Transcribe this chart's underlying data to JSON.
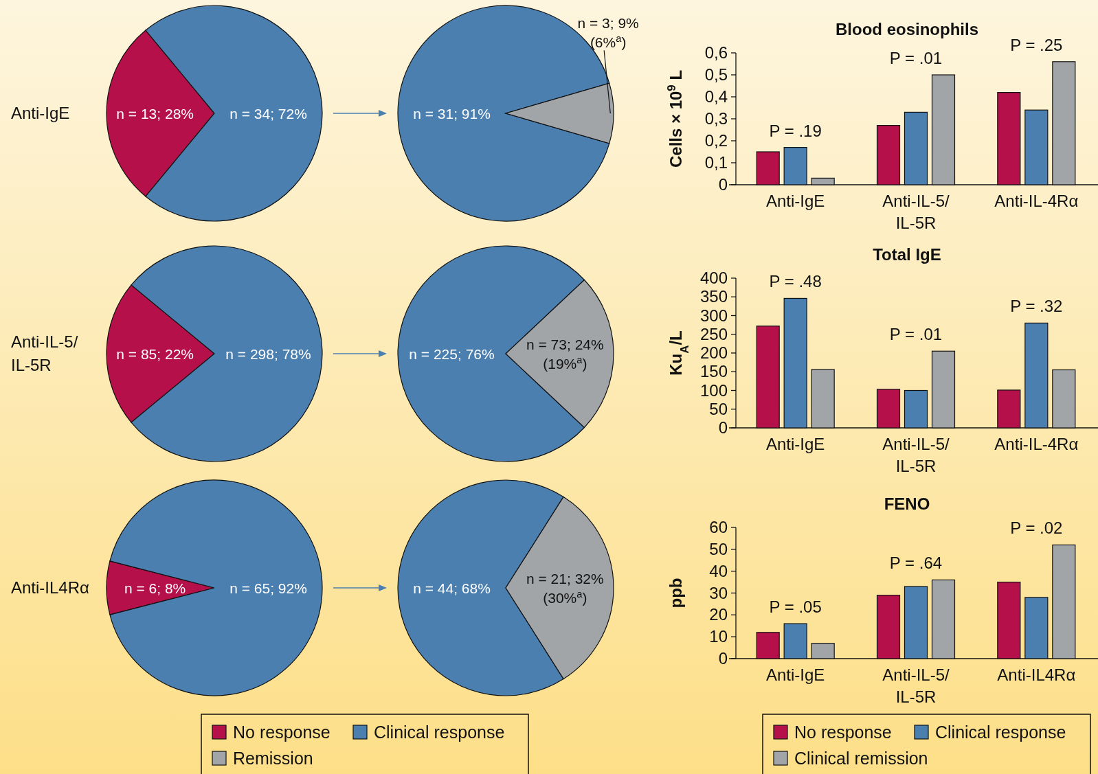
{
  "chart_data": [
    {
      "type": "pie",
      "title": "Anti-IgE",
      "categories": [
        "No response",
        "Clinical response",
        "Remission"
      ],
      "values": [
        28,
        72,
        0
      ],
      "colors": [
        "#b5104a",
        "#4a7fb0",
        "#a2a5a8"
      ],
      "value_labels": [
        "n = 13; 28%",
        "n = 34; 72%",
        null
      ],
      "legend": "bottom"
    },
    {
      "type": "pie",
      "categories": [
        null,
        null,
        null
      ],
      "values": [
        0,
        91,
        9
      ],
      "colors": [
        "#b5104a",
        "#4a7fb0",
        "#a2a5a8"
      ],
      "value_labels": [
        null,
        "n = 31; 91%",
        "n = 3; 9% (6%$^{a}$)"
      ]
    },
    {
      "type": "bar",
      "title": "Blood eosinophils",
      "ylabel": "Cells × 10$^{9}$ L",
      "categories": [
        "Anti-IgE",
        "Anti-IL-5/IL-5R",
        "Anti-IL-4Rα"
      ],
      "series": [
        {
          "color": "#b5104a",
          "values": [
            0.15,
            0.27,
            0.42
          ]
        },
        {
          "color": "#4a7fb0",
          "values": [
            0.17,
            0.33,
            0.34
          ]
        },
        {
          "color": "#a2a5a8",
          "values": [
            0.03,
            0.5,
            0.56
          ]
        }
      ],
      "ylim": [
        0,
        0.6
      ],
      "yticks": [
        0,
        {
          "value": 0.1,
          "label": "0,1"
        },
        {
          "value": 0.2,
          "label": "0,2"
        },
        {
          "value": 0.3,
          "label": "0,3"
        },
        {
          "value": 0.4,
          "label": "0,4"
        },
        {
          "value": 0.5,
          "label": "0,5"
        },
        {
          "value": 0.6,
          "label": "0,6"
        }
      ],
      "annotations": [
        "P = .19",
        "P = .01",
        "P = .25"
      ]
    },
    {
      "type": "pie",
      "title": "Anti-IL-5/IL-5R",
      "categories": [
        null,
        null,
        null
      ],
      "values": [
        22,
        78,
        0
      ],
      "colors": [
        "#b5104a",
        "#4a7fb0",
        "#a2a5a8"
      ],
      "value_labels": [
        "n = 85; 22%",
        "n = 298; 78%",
        null
      ]
    },
    {
      "type": "pie",
      "categories": [
        null,
        null,
        null
      ],
      "values": [
        0,
        76,
        24
      ],
      "colors": [
        "#b5104a",
        "#4a7fb0",
        "#a2a5a8"
      ],
      "value_labels": [
        null,
        "n = 225; 76%",
        "n = 73; 24% (19%$^{a}$)"
      ]
    },
    {
      "type": "bar",
      "title": "Total IgE",
      "ylabel": "Ku$_{A}$/L",
      "categories": [
        "Anti-IgE",
        "Anti-IL-5/IL-5R",
        "Anti-IL-4Rα"
      ],
      "series": [
        {
          "color": "#b5104a",
          "values": [
            272,
            103,
            101
          ]
        },
        {
          "color": "#4a7fb0",
          "values": [
            346,
            100,
            280
          ]
        },
        {
          "color": "#a2a5a8",
          "values": [
            156,
            205,
            155
          ]
        }
      ],
      "ylim": [
        0,
        400
      ],
      "yticks": [
        0,
        50,
        100,
        150,
        200,
        250,
        300,
        350,
        400
      ],
      "annotations": [
        "P = .48",
        "P = .01",
        "P = .32"
      ]
    },
    {
      "type": "pie",
      "title": "Anti-IL4Rα",
      "categories": [
        null,
        null,
        null
      ],
      "values": [
        8,
        92,
        0
      ],
      "colors": [
        "#b5104a",
        "#4a7fb0",
        "#a2a5a8"
      ],
      "value_labels": [
        "n = 6; 8%",
        "n = 65; 92%",
        null
      ]
    },
    {
      "type": "pie",
      "categories": [
        null,
        null,
        null
      ],
      "values": [
        0,
        68,
        32
      ],
      "colors": [
        "#b5104a",
        "#4a7fb0",
        "#a2a5a8"
      ],
      "value_labels": [
        null,
        "n = 44; 68%",
        "n = 21; 32% (30%$^{a}$)"
      ]
    },
    {
      "type": "bar",
      "title": "FENO",
      "ylabel": "ppb",
      "categories": [
        "Anti-IgE",
        "Anti-IL-5/IL-5R",
        "Anti-IL4Rα"
      ],
      "series": [
        {
          "name": "No response",
          "color": "#b5104a",
          "values": [
            12,
            29,
            35
          ]
        },
        {
          "name": "Clinical response",
          "color": "#4a7fb0",
          "values": [
            16,
            33,
            28
          ]
        },
        {
          "name": "Clinical remission",
          "color": "#a2a5a8",
          "values": [
            7,
            36,
            52
          ]
        }
      ],
      "ylim": [
        0,
        60
      ],
      "yticks": [
        0,
        10,
        20,
        30,
        40,
        50,
        60
      ],
      "annotations": [
        "P = .05",
        "P = .64",
        "P = .02"
      ],
      "legend": "bottom"
    }
  ]
}
